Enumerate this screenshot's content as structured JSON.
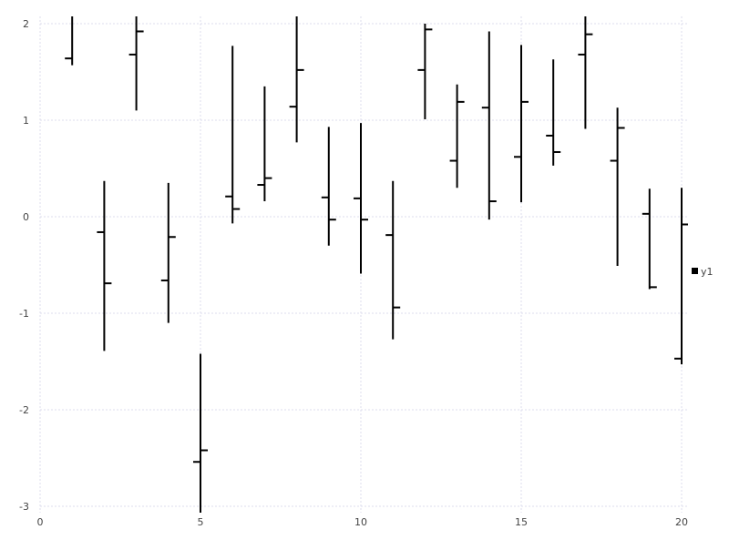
{
  "chart_data": {
    "type": "ohlc",
    "title": "",
    "xlabel": "",
    "ylabel": "",
    "xlim": [
      0,
      20.2
    ],
    "ylim": [
      -3.07,
      2.08
    ],
    "xticks": [
      0,
      5,
      10,
      15,
      20
    ],
    "yticks": [
      -3,
      -2,
      -1,
      0,
      1,
      2
    ],
    "grid": true,
    "legend_position": "right",
    "color": "#000000",
    "series": [
      {
        "name": "y1",
        "x": [
          1,
          2,
          3,
          4,
          5,
          6,
          7,
          8,
          9,
          10,
          11,
          12,
          13,
          14,
          15,
          16,
          17,
          18,
          19,
          20
        ],
        "open": [
          1.64,
          -0.16,
          1.68,
          -0.66,
          -2.54,
          0.21,
          0.33,
          1.14,
          0.2,
          0.19,
          -0.19,
          1.52,
          0.58,
          1.13,
          0.62,
          0.84,
          1.68,
          0.58,
          0.03,
          -1.47
        ],
        "high": [
          2.3,
          0.37,
          2.3,
          0.35,
          -1.42,
          1.77,
          1.35,
          2.2,
          0.93,
          0.97,
          0.37,
          2.0,
          1.37,
          1.92,
          1.78,
          1.63,
          2.2,
          1.13,
          0.29,
          0.3
        ],
        "low": [
          1.57,
          -1.39,
          1.1,
          -1.1,
          -3.07,
          -0.07,
          0.16,
          0.77,
          -0.3,
          -0.59,
          -1.27,
          1.01,
          0.3,
          -0.03,
          0.15,
          0.53,
          0.91,
          -0.51,
          -0.75,
          -1.53
        ],
        "close": [
          2.2,
          -0.69,
          1.92,
          -0.21,
          -2.42,
          0.08,
          0.4,
          1.52,
          -0.03,
          -0.03,
          -0.94,
          1.94,
          1.19,
          0.16,
          1.19,
          0.67,
          1.89,
          0.92,
          -0.73,
          -0.08
        ]
      }
    ]
  }
}
